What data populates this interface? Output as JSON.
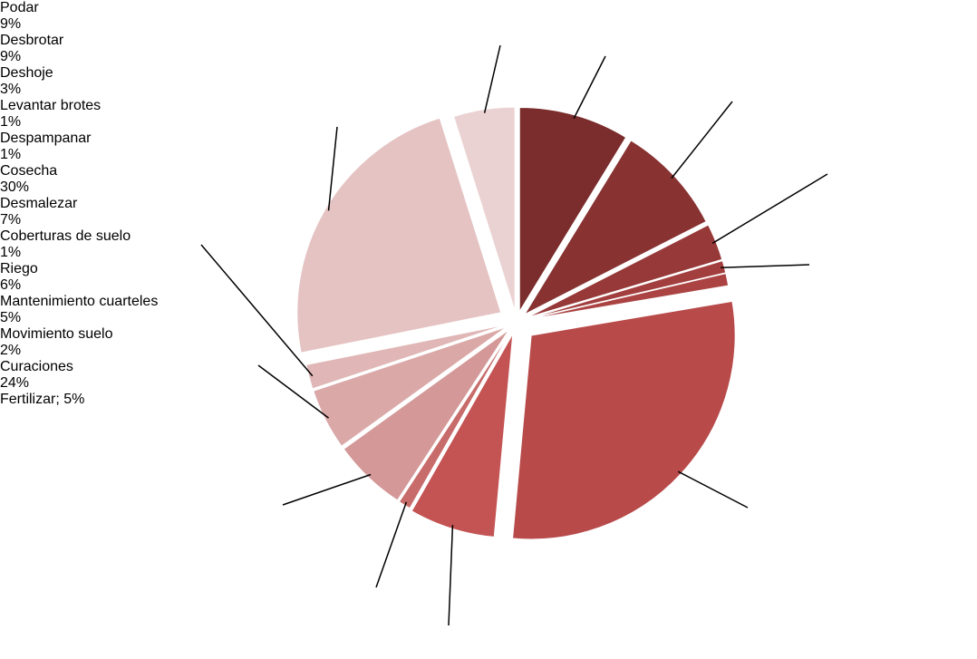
{
  "chart_data": {
    "type": "pie",
    "categories": [
      "Podar",
      "Desbrotar",
      "Deshoje",
      "Levantar brotes",
      "Despampanar",
      "Cosecha",
      "Desmalezar",
      "Coberturas de suelo",
      "Riego",
      "Mantenimiento cuarteles",
      "Movimiento suelo",
      "Curaciones",
      "Fertilizar"
    ],
    "values": [
      9,
      9,
      3,
      1,
      1,
      30,
      7,
      1,
      6,
      5,
      2,
      24,
      5
    ],
    "value_labels": [
      "9%",
      "9%",
      "3%",
      "1%",
      "1%",
      "30%",
      "7%",
      "1%",
      "6%",
      "5%",
      "2%",
      "24%",
      "Fertilizar; 5%"
    ],
    "colors": [
      "#7b2c2c",
      "#883232",
      "#973939",
      "#a33e3e",
      "#ab4343",
      "#b84a4a",
      "#c45353",
      "#c86b6b",
      "#d49898",
      "#dba8a8",
      "#e0b6b6",
      "#e5c3c3",
      "#ebd2d2"
    ]
  }
}
